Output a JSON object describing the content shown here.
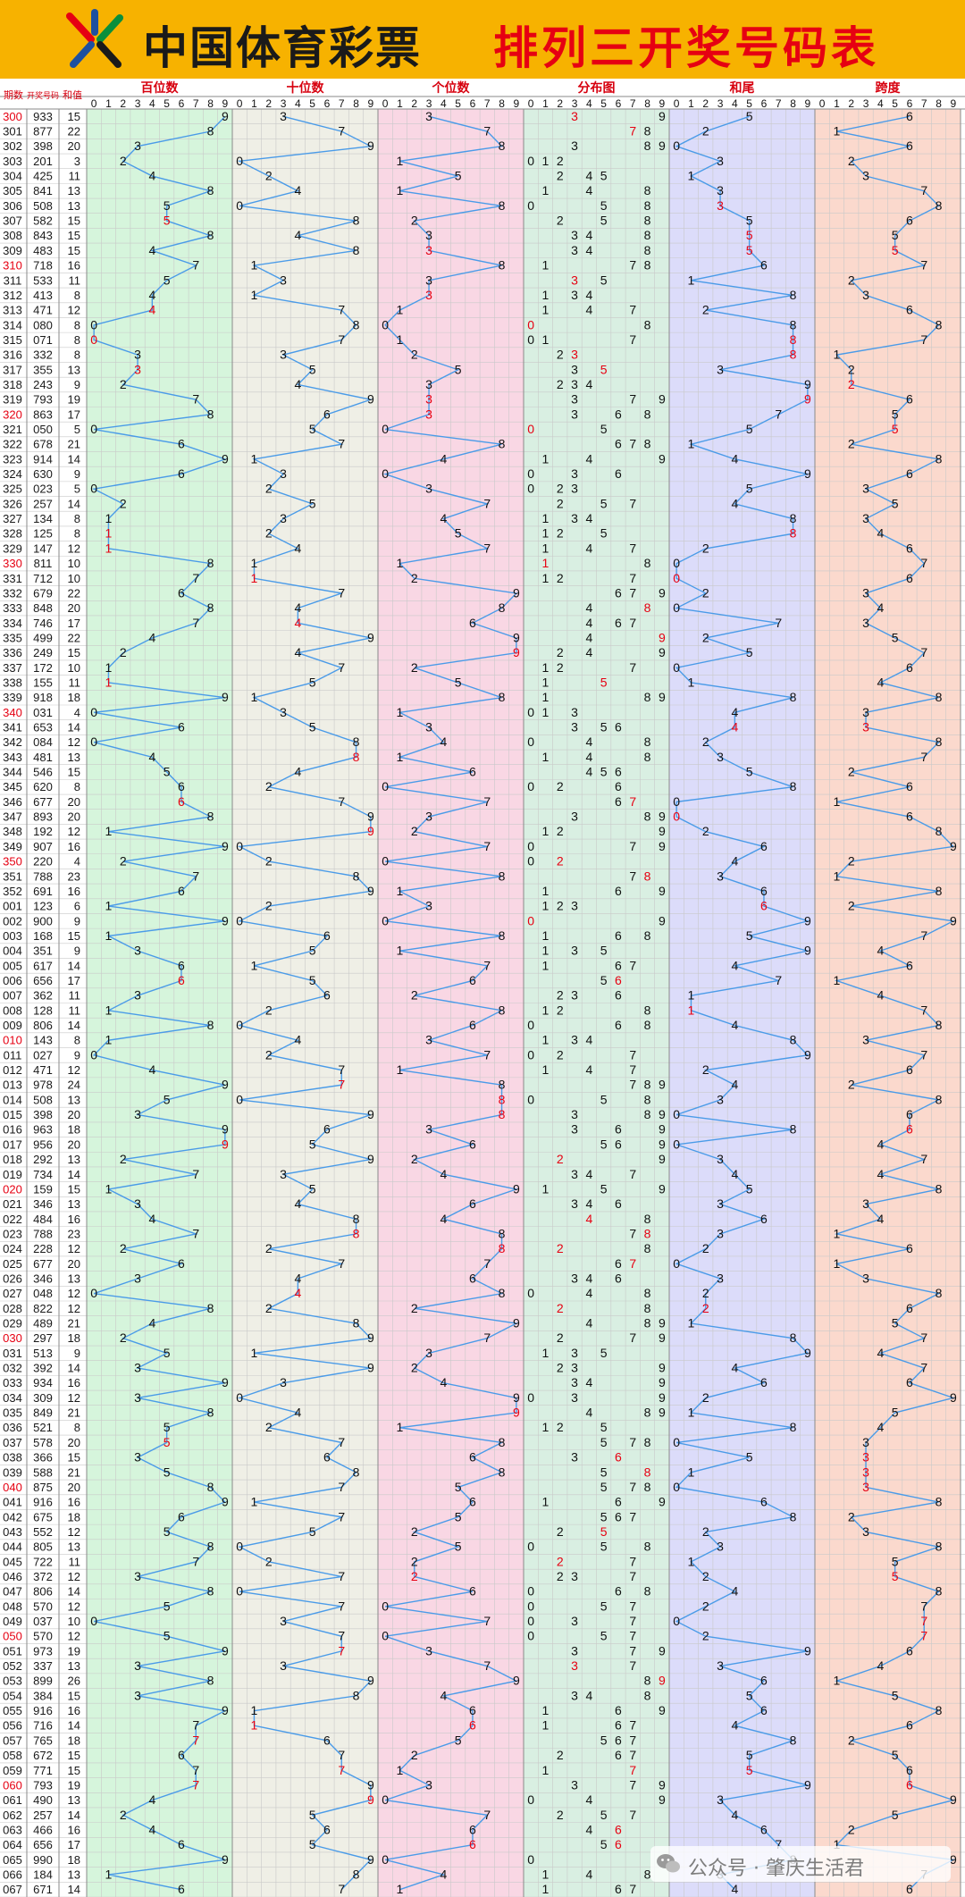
{
  "header": {
    "org_name": "中国体育彩票",
    "title": "排列三开奖号码表"
  },
  "watermark": {
    "text": "公众号 · 肇庆生活君"
  },
  "chart_data": {
    "type": "table",
    "title": "排列三开奖号码表",
    "columns": {
      "issue": "期数",
      "number": "开奖号码",
      "sum": "和值",
      "hundreds": "百位数",
      "tens": "十位数",
      "units": "个位数",
      "distribution": "分布图",
      "sum_tail": "和尾",
      "span": "跨度"
    },
    "digit_header": [
      "0",
      "1",
      "2",
      "3",
      "4",
      "5",
      "6",
      "7",
      "8",
      "9"
    ],
    "section_colors": [
      "#d6f5dc",
      "#efefe6",
      "#f9d7e4",
      "#d9efe2",
      "#dcdcfa",
      "#fbd9cd"
    ],
    "line_color": "#4a9be8",
    "highlight_color": "#e60012",
    "draws": [
      {
        "issue": "300",
        "number": "933",
        "sum": "15"
      },
      {
        "issue": "301",
        "number": "877",
        "sum": "22"
      },
      {
        "issue": "302",
        "number": "398",
        "sum": "20"
      },
      {
        "issue": "303",
        "number": "201",
        "sum": "3"
      },
      {
        "issue": "304",
        "number": "425",
        "sum": "11"
      },
      {
        "issue": "305",
        "number": "841",
        "sum": "13"
      },
      {
        "issue": "306",
        "number": "508",
        "sum": "13"
      },
      {
        "issue": "307",
        "number": "582",
        "sum": "15"
      },
      {
        "issue": "308",
        "number": "843",
        "sum": "15"
      },
      {
        "issue": "309",
        "number": "483",
        "sum": "15"
      },
      {
        "issue": "310",
        "number": "718",
        "sum": "16"
      },
      {
        "issue": "311",
        "number": "533",
        "sum": "11"
      },
      {
        "issue": "312",
        "number": "413",
        "sum": "8"
      },
      {
        "issue": "313",
        "number": "471",
        "sum": "12"
      },
      {
        "issue": "314",
        "number": "080",
        "sum": "8"
      },
      {
        "issue": "315",
        "number": "071",
        "sum": "8"
      },
      {
        "issue": "316",
        "number": "332",
        "sum": "8"
      },
      {
        "issue": "317",
        "number": "355",
        "sum": "13"
      },
      {
        "issue": "318",
        "number": "243",
        "sum": "9"
      },
      {
        "issue": "319",
        "number": "793",
        "sum": "19"
      },
      {
        "issue": "320",
        "number": "863",
        "sum": "17"
      },
      {
        "issue": "321",
        "number": "050",
        "sum": "5"
      },
      {
        "issue": "322",
        "number": "678",
        "sum": "21"
      },
      {
        "issue": "323",
        "number": "914",
        "sum": "14"
      },
      {
        "issue": "324",
        "number": "630",
        "sum": "9"
      },
      {
        "issue": "325",
        "number": "023",
        "sum": "5"
      },
      {
        "issue": "326",
        "number": "257",
        "sum": "14"
      },
      {
        "issue": "327",
        "number": "134",
        "sum": "8"
      },
      {
        "issue": "328",
        "number": "125",
        "sum": "8"
      },
      {
        "issue": "329",
        "number": "147",
        "sum": "12"
      },
      {
        "issue": "330",
        "number": "811",
        "sum": "10"
      },
      {
        "issue": "331",
        "number": "712",
        "sum": "10"
      },
      {
        "issue": "332",
        "number": "679",
        "sum": "22"
      },
      {
        "issue": "333",
        "number": "848",
        "sum": "20"
      },
      {
        "issue": "334",
        "number": "746",
        "sum": "17"
      },
      {
        "issue": "335",
        "number": "499",
        "sum": "22"
      },
      {
        "issue": "336",
        "number": "249",
        "sum": "15"
      },
      {
        "issue": "337",
        "number": "172",
        "sum": "10"
      },
      {
        "issue": "338",
        "number": "155",
        "sum": "11"
      },
      {
        "issue": "339",
        "number": "918",
        "sum": "18"
      },
      {
        "issue": "340",
        "number": "031",
        "sum": "4"
      },
      {
        "issue": "341",
        "number": "653",
        "sum": "14"
      },
      {
        "issue": "342",
        "number": "084",
        "sum": "12"
      },
      {
        "issue": "343",
        "number": "481",
        "sum": "13"
      },
      {
        "issue": "344",
        "number": "546",
        "sum": "15"
      },
      {
        "issue": "345",
        "number": "620",
        "sum": "8"
      },
      {
        "issue": "346",
        "number": "677",
        "sum": "20"
      },
      {
        "issue": "347",
        "number": "893",
        "sum": "20"
      },
      {
        "issue": "348",
        "number": "192",
        "sum": "12"
      },
      {
        "issue": "349",
        "number": "907",
        "sum": "16"
      },
      {
        "issue": "350",
        "number": "220",
        "sum": "4"
      },
      {
        "issue": "351",
        "number": "788",
        "sum": "23"
      },
      {
        "issue": "352",
        "number": "691",
        "sum": "16"
      },
      {
        "issue": "001",
        "number": "123",
        "sum": "6"
      },
      {
        "issue": "002",
        "number": "900",
        "sum": "9"
      },
      {
        "issue": "003",
        "number": "168",
        "sum": "15"
      },
      {
        "issue": "004",
        "number": "351",
        "sum": "9"
      },
      {
        "issue": "005",
        "number": "617",
        "sum": "14"
      },
      {
        "issue": "006",
        "number": "656",
        "sum": "17"
      },
      {
        "issue": "007",
        "number": "362",
        "sum": "11"
      },
      {
        "issue": "008",
        "number": "128",
        "sum": "11"
      },
      {
        "issue": "009",
        "number": "806",
        "sum": "14"
      },
      {
        "issue": "010",
        "number": "143",
        "sum": "8"
      },
      {
        "issue": "011",
        "number": "027",
        "sum": "9"
      },
      {
        "issue": "012",
        "number": "471",
        "sum": "12"
      },
      {
        "issue": "013",
        "number": "978",
        "sum": "24"
      },
      {
        "issue": "014",
        "number": "508",
        "sum": "13"
      },
      {
        "issue": "015",
        "number": "398",
        "sum": "20"
      },
      {
        "issue": "016",
        "number": "963",
        "sum": "18"
      },
      {
        "issue": "017",
        "number": "956",
        "sum": "20"
      },
      {
        "issue": "018",
        "number": "292",
        "sum": "13"
      },
      {
        "issue": "019",
        "number": "734",
        "sum": "14"
      },
      {
        "issue": "020",
        "number": "159",
        "sum": "15"
      },
      {
        "issue": "021",
        "number": "346",
        "sum": "13"
      },
      {
        "issue": "022",
        "number": "484",
        "sum": "16"
      },
      {
        "issue": "023",
        "number": "788",
        "sum": "23"
      },
      {
        "issue": "024",
        "number": "228",
        "sum": "12"
      },
      {
        "issue": "025",
        "number": "677",
        "sum": "20"
      },
      {
        "issue": "026",
        "number": "346",
        "sum": "13"
      },
      {
        "issue": "027",
        "number": "048",
        "sum": "12"
      },
      {
        "issue": "028",
        "number": "822",
        "sum": "12"
      },
      {
        "issue": "029",
        "number": "489",
        "sum": "21"
      },
      {
        "issue": "030",
        "number": "297",
        "sum": "18"
      },
      {
        "issue": "031",
        "number": "513",
        "sum": "9"
      },
      {
        "issue": "032",
        "number": "392",
        "sum": "14"
      },
      {
        "issue": "033",
        "number": "934",
        "sum": "16"
      },
      {
        "issue": "034",
        "number": "309",
        "sum": "12"
      },
      {
        "issue": "035",
        "number": "849",
        "sum": "21"
      },
      {
        "issue": "036",
        "number": "521",
        "sum": "8"
      },
      {
        "issue": "037",
        "number": "578",
        "sum": "20"
      },
      {
        "issue": "038",
        "number": "366",
        "sum": "15"
      },
      {
        "issue": "039",
        "number": "588",
        "sum": "21"
      },
      {
        "issue": "040",
        "number": "875",
        "sum": "20"
      },
      {
        "issue": "041",
        "number": "916",
        "sum": "16"
      },
      {
        "issue": "042",
        "number": "675",
        "sum": "18"
      },
      {
        "issue": "043",
        "number": "552",
        "sum": "12"
      },
      {
        "issue": "044",
        "number": "805",
        "sum": "13"
      },
      {
        "issue": "045",
        "number": "722",
        "sum": "11"
      },
      {
        "issue": "046",
        "number": "372",
        "sum": "12"
      },
      {
        "issue": "047",
        "number": "806",
        "sum": "14"
      },
      {
        "issue": "048",
        "number": "570",
        "sum": "12"
      },
      {
        "issue": "049",
        "number": "037",
        "sum": "10"
      },
      {
        "issue": "050",
        "number": "570",
        "sum": "12"
      },
      {
        "issue": "051",
        "number": "973",
        "sum": "19"
      },
      {
        "issue": "052",
        "number": "337",
        "sum": "13"
      },
      {
        "issue": "053",
        "number": "899",
        "sum": "26"
      },
      {
        "issue": "054",
        "number": "384",
        "sum": "15"
      },
      {
        "issue": "055",
        "number": "916",
        "sum": "16"
      },
      {
        "issue": "056",
        "number": "716",
        "sum": "14"
      },
      {
        "issue": "057",
        "number": "765",
        "sum": "18"
      },
      {
        "issue": "058",
        "number": "672",
        "sum": "15"
      },
      {
        "issue": "059",
        "number": "771",
        "sum": "15"
      },
      {
        "issue": "060",
        "number": "793",
        "sum": "19"
      },
      {
        "issue": "061",
        "number": "490",
        "sum": "13"
      },
      {
        "issue": "062",
        "number": "257",
        "sum": "14"
      },
      {
        "issue": "063",
        "number": "466",
        "sum": "16"
      },
      {
        "issue": "064",
        "number": "656",
        "sum": "17"
      },
      {
        "issue": "065",
        "number": "990",
        "sum": "18"
      },
      {
        "issue": "066",
        "number": "184",
        "sum": "13"
      },
      {
        "issue": "067",
        "number": "671",
        "sum": "14"
      }
    ]
  }
}
